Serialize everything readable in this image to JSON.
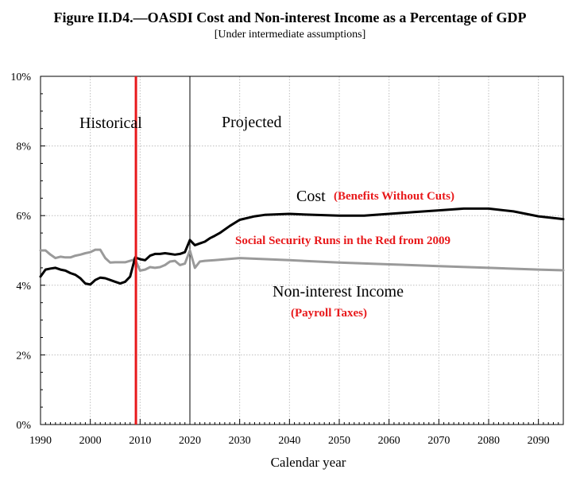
{
  "chart_data": {
    "type": "line",
    "title": "Figure II.D4.—OASDI Cost and Non-interest Income as a Percentage of GDP",
    "subtitle": "[Under intermediate assumptions]",
    "xlabel": "Calendar year",
    "ylabel": "",
    "xlim": [
      1990,
      2095
    ],
    "ylim": [
      0,
      10
    ],
    "grid": true,
    "y_ticks": [
      "0%",
      "2%",
      "4%",
      "6%",
      "8%",
      "10%"
    ],
    "y_tick_values": [
      0,
      2,
      4,
      6,
      8,
      10
    ],
    "x_ticks": [
      "1990",
      "2000",
      "2010",
      "2020",
      "2030",
      "2040",
      "2050",
      "2060",
      "2070",
      "2080",
      "2090"
    ],
    "x_tick_values": [
      1990,
      2000,
      2010,
      2020,
      2030,
      2040,
      2050,
      2060,
      2070,
      2080,
      2090
    ],
    "regions": [
      "Historical",
      "Projected"
    ],
    "divider_year": 2020,
    "red_line_year": 2009,
    "colors": {
      "cost": "#000000",
      "income": "#9a9a9a",
      "red": "#e8191b",
      "grid": "#bdbdbd"
    },
    "annotations": {
      "cost_label": "Cost",
      "cost_note": "(Benefits Without Cuts)",
      "deficit_note": "Social Security Runs in the Red from 2009",
      "income_label": "Non-interest Income",
      "income_note": "(Payroll Taxes)"
    },
    "series": [
      {
        "name": "Cost",
        "x": [
          1990,
          1991,
          1992,
          1993,
          1994,
          1995,
          1996,
          1997,
          1998,
          1999,
          2000,
          2001,
          2002,
          2003,
          2004,
          2005,
          2006,
          2007,
          2008,
          2009,
          2010,
          2011,
          2012,
          2013,
          2014,
          2015,
          2016,
          2017,
          2018,
          2019,
          2020,
          2021,
          2022,
          2023,
          2024,
          2025,
          2026,
          2028,
          2030,
          2033,
          2035,
          2040,
          2045,
          2050,
          2055,
          2060,
          2065,
          2070,
          2075,
          2080,
          2085,
          2090,
          2095
        ],
        "y": [
          4.25,
          4.45,
          4.48,
          4.5,
          4.45,
          4.42,
          4.35,
          4.3,
          4.2,
          4.05,
          4.02,
          4.15,
          4.22,
          4.2,
          4.15,
          4.1,
          4.05,
          4.1,
          4.25,
          4.8,
          4.75,
          4.72,
          4.85,
          4.9,
          4.9,
          4.92,
          4.9,
          4.88,
          4.9,
          4.95,
          5.3,
          5.15,
          5.2,
          5.25,
          5.35,
          5.42,
          5.5,
          5.7,
          5.88,
          5.98,
          6.02,
          6.05,
          6.02,
          6.0,
          6.0,
          6.05,
          6.1,
          6.15,
          6.2,
          6.2,
          6.12,
          5.98,
          5.9
        ]
      },
      {
        "name": "Non-interest Income",
        "x": [
          1990,
          1991,
          1992,
          1993,
          1994,
          1995,
          1996,
          1997,
          1998,
          1999,
          2000,
          2001,
          2002,
          2003,
          2004,
          2005,
          2006,
          2007,
          2008,
          2009,
          2010,
          2011,
          2012,
          2013,
          2014,
          2015,
          2016,
          2017,
          2018,
          2019,
          2020,
          2021,
          2022,
          2023,
          2025,
          2030,
          2040,
          2050,
          2060,
          2070,
          2080,
          2090,
          2095
        ],
        "y": [
          5.0,
          5.0,
          4.88,
          4.78,
          4.82,
          4.8,
          4.8,
          4.85,
          4.88,
          4.92,
          4.95,
          5.02,
          5.02,
          4.78,
          4.65,
          4.66,
          4.66,
          4.66,
          4.7,
          4.75,
          4.42,
          4.45,
          4.52,
          4.5,
          4.52,
          4.58,
          4.68,
          4.7,
          4.58,
          4.62,
          5.0,
          4.5,
          4.68,
          4.7,
          4.72,
          4.78,
          4.72,
          4.65,
          4.6,
          4.55,
          4.5,
          4.45,
          4.43
        ]
      }
    ]
  }
}
